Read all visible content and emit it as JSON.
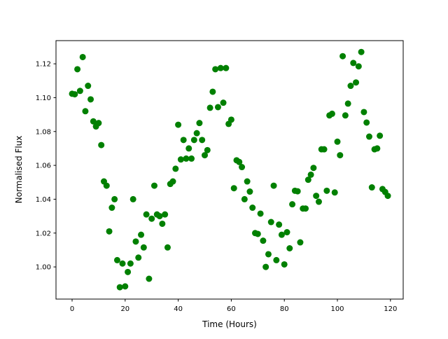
{
  "chart_data": {
    "type": "scatter",
    "title": "",
    "xlabel": "Time (Hours)",
    "ylabel": "Normalised Flux",
    "xlim": [
      -6.07,
      124.8
    ],
    "ylim": [
      0.981,
      1.1337
    ],
    "xticks": [
      0,
      20,
      40,
      60,
      80,
      100,
      120
    ],
    "xtick_labels": [
      "0",
      "20",
      "40",
      "60",
      "80",
      "100",
      "120"
    ],
    "yticks": [
      1.0,
      1.02,
      1.04,
      1.06,
      1.08,
      1.1,
      1.12
    ],
    "ytick_labels": [
      "1.00",
      "1.02",
      "1.04",
      "1.06",
      "1.08",
      "1.10",
      "1.12"
    ],
    "grid": false,
    "color": "#008000",
    "x": [
      0,
      1,
      2,
      3,
      4,
      5,
      6,
      7,
      8,
      9,
      10,
      11,
      12,
      13,
      14,
      15,
      16,
      17,
      18,
      19,
      20,
      21,
      22,
      23,
      24,
      25,
      26,
      27,
      28,
      29,
      30,
      31,
      32,
      33,
      34,
      35,
      36,
      37,
      38,
      39,
      40,
      41,
      42,
      43,
      44,
      45,
      46,
      47,
      48,
      49,
      50,
      51,
      52,
      53,
      54,
      55,
      56,
      57,
      58,
      59,
      60,
      61,
      62,
      63,
      64,
      65,
      66,
      67,
      68,
      69,
      70,
      71,
      72,
      73,
      74,
      75,
      76,
      77,
      78,
      79,
      80,
      81,
      82,
      83,
      84,
      85,
      86,
      87,
      88,
      89,
      90,
      91,
      92,
      93,
      94,
      95,
      96,
      97,
      98,
      99,
      100,
      101,
      102,
      103,
      104,
      105,
      106,
      107,
      108,
      109,
      110,
      111,
      112,
      113,
      114,
      115,
      116,
      117,
      118,
      119
    ],
    "y": [
      1.1023,
      1.102,
      1.1168,
      1.104,
      1.124,
      1.092,
      1.107,
      1.099,
      1.086,
      1.083,
      1.085,
      1.072,
      1.0505,
      1.048,
      1.021,
      1.035,
      1.04,
      1.004,
      0.988,
      1.002,
      0.9885,
      0.997,
      1.002,
      1.04,
      1.015,
      1.0055,
      1.019,
      1.0115,
      1.031,
      0.993,
      1.0285,
      1.048,
      1.031,
      1.03,
      1.0255,
      1.031,
      1.0115,
      1.049,
      1.0505,
      1.058,
      1.084,
      1.0635,
      1.075,
      1.064,
      1.07,
      1.064,
      1.075,
      1.079,
      1.085,
      1.075,
      1.066,
      1.069,
      1.094,
      1.1035,
      1.1168,
      1.0944,
      1.1175,
      1.097,
      1.1175,
      1.0845,
      1.087,
      1.0465,
      1.063,
      1.062,
      1.059,
      1.04,
      1.0505,
      1.0445,
      1.035,
      1.02,
      1.0195,
      1.0315,
      1.0155,
      1.0,
      1.0075,
      1.0265,
      1.048,
      1.004,
      1.025,
      1.019,
      1.0015,
      1.0205,
      1.011,
      1.037,
      1.045,
      1.0447,
      1.0145,
      1.0345,
      1.0345,
      1.0515,
      1.0545,
      1.0585,
      1.042,
      1.0385,
      1.0695,
      1.0695,
      1.045,
      1.0895,
      1.0905,
      1.044,
      1.074,
      1.066,
      1.1245,
      1.0895,
      1.0965,
      1.107,
      1.1205,
      1.109,
      1.1185,
      1.127,
      1.0915,
      1.0853,
      1.077,
      1.047,
      1.0695,
      1.07,
      1.0775,
      1.046,
      1.0443,
      1.042
    ]
  }
}
